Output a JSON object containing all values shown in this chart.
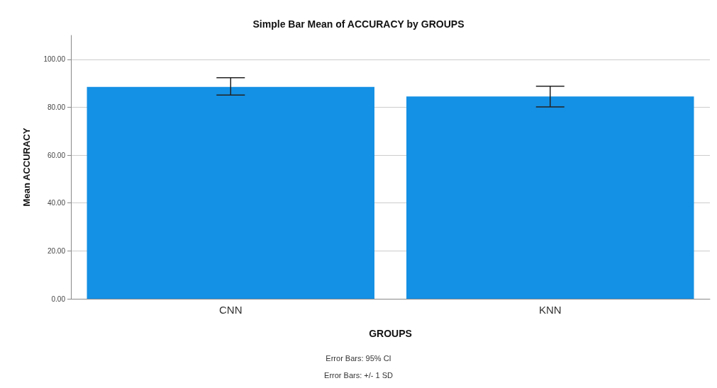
{
  "chart_data": {
    "type": "bar",
    "title": "Simple Bar Mean of ACCURACY by GROUPS",
    "xlabel": "GROUPS",
    "ylabel": "Mean ACCURACY",
    "categories": [
      "CNN",
      "KNN"
    ],
    "values": [
      88.5,
      84.5
    ],
    "errors": [
      [
        85.1,
        92.3
      ],
      [
        80.1,
        88.8
      ]
    ],
    "color": "#1490e4",
    "ylim": [
      0,
      110
    ],
    "yticks": [
      {
        "value": 0,
        "label": "0.00"
      },
      {
        "value": 20,
        "label": "20.00"
      },
      {
        "value": 40,
        "label": "40.00"
      },
      {
        "value": 60,
        "label": "60.00"
      },
      {
        "value": 80,
        "label": "80.00"
      },
      {
        "value": 100,
        "label": "100.00"
      }
    ],
    "grid": "y",
    "annotations": [
      "Error Bars: 95% CI",
      "Error Bars: +/- 1 SD"
    ]
  }
}
